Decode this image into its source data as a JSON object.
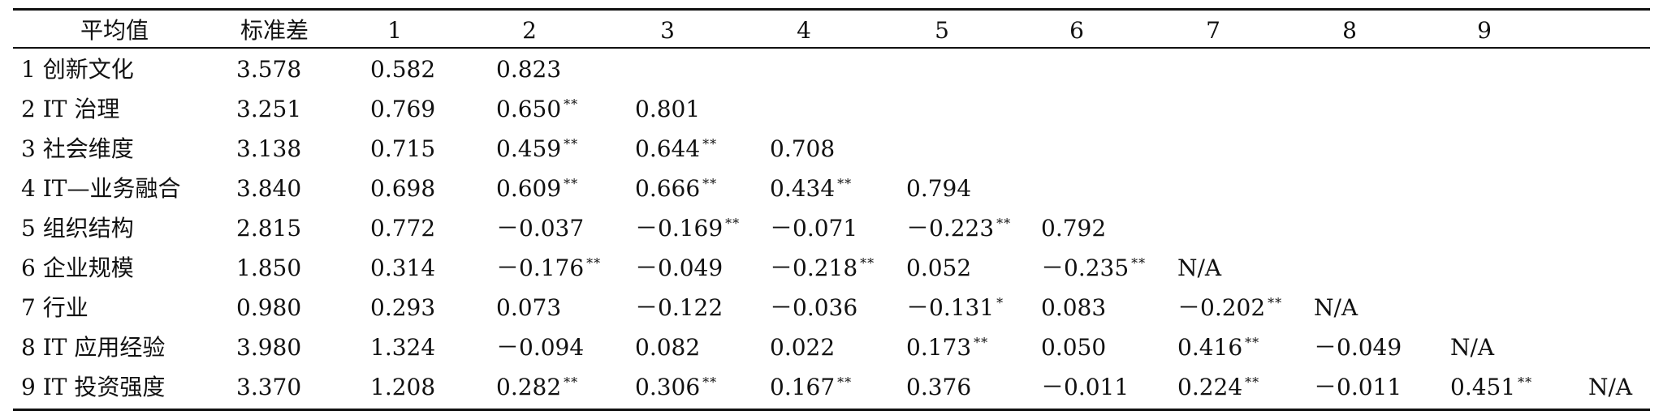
{
  "table": {
    "header": [
      "平均值",
      "标准差",
      "1",
      "2",
      "3",
      "4",
      "5",
      "6",
      "7",
      "8",
      "9"
    ],
    "rows": [
      {
        "label": "1 创新文化",
        "cells": [
          [
            "3.578",
            ""
          ],
          [
            "0.582",
            ""
          ],
          [
            "0.823",
            ""
          ],
          [
            "",
            ""
          ],
          [
            "",
            ""
          ],
          [
            "",
            ""
          ],
          [
            "",
            ""
          ],
          [
            "",
            ""
          ],
          [
            "",
            ""
          ],
          [
            "",
            ""
          ],
          [
            "",
            ""
          ]
        ]
      },
      {
        "label": "2 IT 治理",
        "cells": [
          [
            "3.251",
            ""
          ],
          [
            "0.769",
            ""
          ],
          [
            "0.650",
            "**"
          ],
          [
            "0.801",
            ""
          ],
          [
            "",
            ""
          ],
          [
            "",
            ""
          ],
          [
            "",
            ""
          ],
          [
            "",
            ""
          ],
          [
            "",
            ""
          ],
          [
            "",
            ""
          ],
          [
            "",
            ""
          ]
        ]
      },
      {
        "label": "3 社会维度",
        "cells": [
          [
            "3.138",
            ""
          ],
          [
            "0.715",
            ""
          ],
          [
            "0.459",
            "**"
          ],
          [
            "0.644",
            "**"
          ],
          [
            "0.708",
            ""
          ],
          [
            "",
            ""
          ],
          [
            "",
            ""
          ],
          [
            "",
            ""
          ],
          [
            "",
            ""
          ],
          [
            "",
            ""
          ],
          [
            "",
            ""
          ]
        ]
      },
      {
        "label": "4 IT—业务融合",
        "cells": [
          [
            "3.840",
            ""
          ],
          [
            "0.698",
            ""
          ],
          [
            "0.609",
            "**"
          ],
          [
            "0.666",
            "**"
          ],
          [
            "0.434",
            "**"
          ],
          [
            "0.794",
            ""
          ],
          [
            "",
            ""
          ],
          [
            "",
            ""
          ],
          [
            "",
            ""
          ],
          [
            "",
            ""
          ],
          [
            "",
            ""
          ]
        ]
      },
      {
        "label": "5 组织结构",
        "cells": [
          [
            "2.815",
            ""
          ],
          [
            "0.772",
            ""
          ],
          [
            "－0.037",
            ""
          ],
          [
            "－0.169",
            "**"
          ],
          [
            "－0.071",
            ""
          ],
          [
            "－0.223",
            "**"
          ],
          [
            "0.792",
            ""
          ],
          [
            "",
            ""
          ],
          [
            "",
            ""
          ],
          [
            "",
            ""
          ],
          [
            "",
            ""
          ]
        ]
      },
      {
        "label": "6 企业规模",
        "cells": [
          [
            "1.850",
            ""
          ],
          [
            "0.314",
            ""
          ],
          [
            "－0.176",
            "**"
          ],
          [
            "－0.049",
            ""
          ],
          [
            "－0.218",
            "**"
          ],
          [
            "0.052",
            ""
          ],
          [
            "－0.235",
            "**"
          ],
          [
            "N/A",
            ""
          ],
          [
            "",
            ""
          ],
          [
            "",
            ""
          ],
          [
            "",
            ""
          ]
        ]
      },
      {
        "label": "7 行业",
        "cells": [
          [
            "0.980",
            ""
          ],
          [
            "0.293",
            ""
          ],
          [
            "0.073",
            ""
          ],
          [
            "－0.122",
            ""
          ],
          [
            "－0.036",
            ""
          ],
          [
            "－0.131",
            "*"
          ],
          [
            "0.083",
            ""
          ],
          [
            "－0.202",
            "**"
          ],
          [
            "N/A",
            ""
          ],
          [
            "",
            ""
          ],
          [
            "",
            ""
          ]
        ]
      },
      {
        "label": "8 IT 应用经验",
        "cells": [
          [
            "3.980",
            ""
          ],
          [
            "1.324",
            ""
          ],
          [
            "－0.094",
            ""
          ],
          [
            "0.082",
            ""
          ],
          [
            "0.022",
            ""
          ],
          [
            "0.173",
            "**"
          ],
          [
            "0.050",
            ""
          ],
          [
            "0.416",
            "**"
          ],
          [
            "－0.049",
            ""
          ],
          [
            "N/A",
            ""
          ],
          [
            "",
            ""
          ]
        ]
      },
      {
        "label": "9 IT 投资强度",
        "cells": [
          [
            "3.370",
            ""
          ],
          [
            "1.208",
            ""
          ],
          [
            "0.282",
            "**"
          ],
          [
            "0.306",
            "**"
          ],
          [
            "0.167",
            "**"
          ],
          [
            "0.376",
            ""
          ],
          [
            "－0.011",
            ""
          ],
          [
            "0.224",
            "**"
          ],
          [
            "－0.011",
            ""
          ],
          [
            "0.451",
            "**"
          ],
          [
            "N/A",
            ""
          ]
        ]
      }
    ]
  }
}
